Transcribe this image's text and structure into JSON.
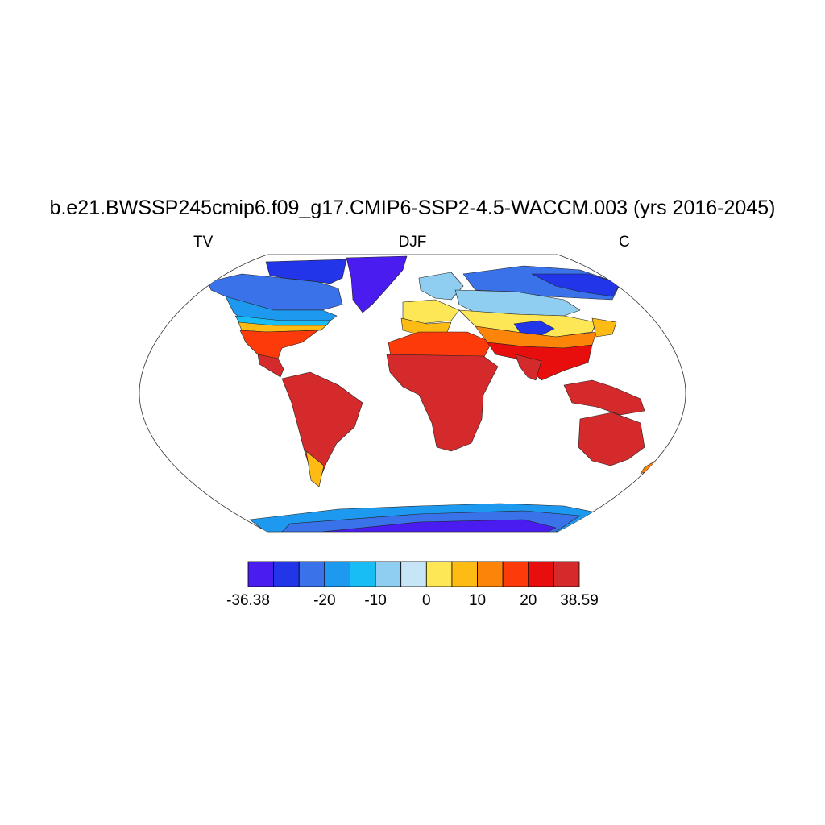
{
  "title": "b.e21.BWSSP245cmip6.f09_g17.CMIP6-SSP2-4.5-WACCM.003 (yrs 2016-2045)",
  "labels": {
    "left": "TV",
    "center": "DJF",
    "right": "C"
  },
  "colorbar": {
    "colors": [
      "#4b1cf0",
      "#2235e8",
      "#3a72ea",
      "#1d9aef",
      "#18bdf5",
      "#8fcef0",
      "#c6e6f7",
      "#fde757",
      "#fdbb14",
      "#fc8408",
      "#fd3a0a",
      "#e80e0d",
      "#d42a2c"
    ],
    "tick_labels": [
      "-36.38",
      "-20",
      "-10",
      "0",
      "10",
      "20",
      "38.59"
    ],
    "tick_values": [
      -36.38,
      -20,
      -10,
      0,
      10,
      20,
      38.59
    ]
  }
}
